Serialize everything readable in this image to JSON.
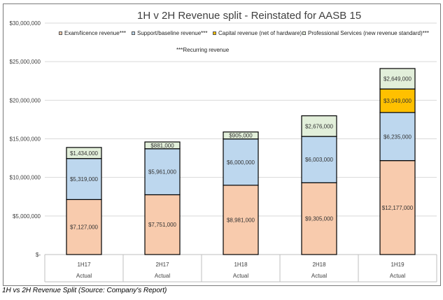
{
  "caption": "1H vs 2H Revenue Split (Source: Company's Report)",
  "chart_data": {
    "type": "bar",
    "stacked": true,
    "title": "1H v 2H Revenue split - Reinstated for AASB 15",
    "categories": [
      "1H17",
      "2H17",
      "1H18",
      "2H18",
      "1H19"
    ],
    "category_sublabel": "Actual",
    "ylim": [
      0,
      30000000
    ],
    "y_ticks": [
      0,
      5000000,
      10000000,
      15000000,
      20000000,
      25000000,
      30000000
    ],
    "y_tick_labels": [
      "$-",
      "$5,000,000",
      "$10,000,000",
      "$15,000,000",
      "$20,000,000",
      "$25,000,000",
      "$30,000,000"
    ],
    "grid": true,
    "legend_position": "top",
    "legend_note": "***Recurring revenue",
    "series": [
      {
        "name": "Exam/licence revenue***",
        "color": "#f8cbad",
        "values": [
          7127000,
          7751000,
          8981000,
          9305000,
          12177000
        ],
        "labels": [
          "$7,127,000",
          "$7,751,000",
          "$8,981,000",
          "$9,305,000",
          "$12,177,000"
        ]
      },
      {
        "name": "Support/baseline revenue***",
        "color": "#bdd7ee",
        "values": [
          5319000,
          5961000,
          6000000,
          6003000,
          6235000
        ],
        "labels": [
          "$5,319,000",
          "$5,961,000",
          "$6,000,000",
          "$6,003,000",
          "$6,235,000"
        ]
      },
      {
        "name": "Capital revenue (net of hardware)",
        "color": "#ffc000",
        "values": [
          0,
          0,
          0,
          0,
          3049000
        ],
        "labels": [
          "",
          "",
          "",
          "",
          "$3,049,000"
        ]
      },
      {
        "name": "Professional Services (new revenue standard)***",
        "color": "#e2efda",
        "values": [
          1434000,
          881000,
          905000,
          2676000,
          2649000
        ],
        "labels": [
          "$1,434,000",
          "$881,000",
          "$905,000",
          "$2,676,000",
          "$2,649,000"
        ]
      }
    ]
  }
}
